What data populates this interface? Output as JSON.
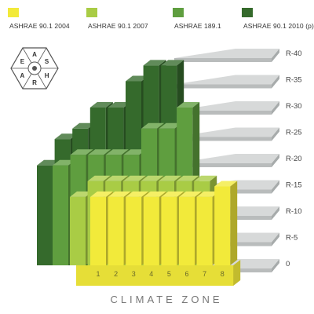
{
  "legend": [
    {
      "label": "ASHRAE 90.1 2004",
      "color": "#f2ea3a"
    },
    {
      "label": "ASHRAE 90.1 2007",
      "color": "#a9cc45"
    },
    {
      "label": "ASHRAE  189.1",
      "color": "#5f9e3f"
    },
    {
      "label": "ASHRAE 90.1 2010 (p)",
      "color": "#356a2c"
    }
  ],
  "logo": {
    "letters": [
      "A",
      "S",
      "H",
      "R",
      "A",
      "E"
    ],
    "icon": "ashrae-logo-icon"
  },
  "chart_data": {
    "type": "bar",
    "categories": [
      "1",
      "2",
      "3",
      "4",
      "5",
      "6",
      "7",
      "8"
    ],
    "xlabel": "CLIMATE ZONE",
    "ylabel": "",
    "ylim": [
      0,
      40
    ],
    "yticks": [
      "0",
      "R-5",
      "R-10",
      "R-15",
      "R-20",
      "R-25",
      "R-30",
      "R-35",
      "R-40"
    ],
    "series": [
      {
        "name": "ASHRAE 90.1 2004",
        "values": [
          13,
          13,
          13,
          13,
          13,
          13,
          13,
          15
        ]
      },
      {
        "name": "ASHRAE 90.1 2007",
        "values": [
          13,
          16,
          16,
          16,
          16,
          16,
          16,
          16
        ]
      },
      {
        "name": "ASHRAE  189.1",
        "values": [
          19,
          21,
          21,
          21,
          21,
          26,
          26,
          30
        ]
      },
      {
        "name": "ASHRAE 90.1 2010 (p)",
        "values": [
          19,
          24,
          26,
          30,
          30,
          35,
          38,
          38
        ]
      }
    ]
  }
}
